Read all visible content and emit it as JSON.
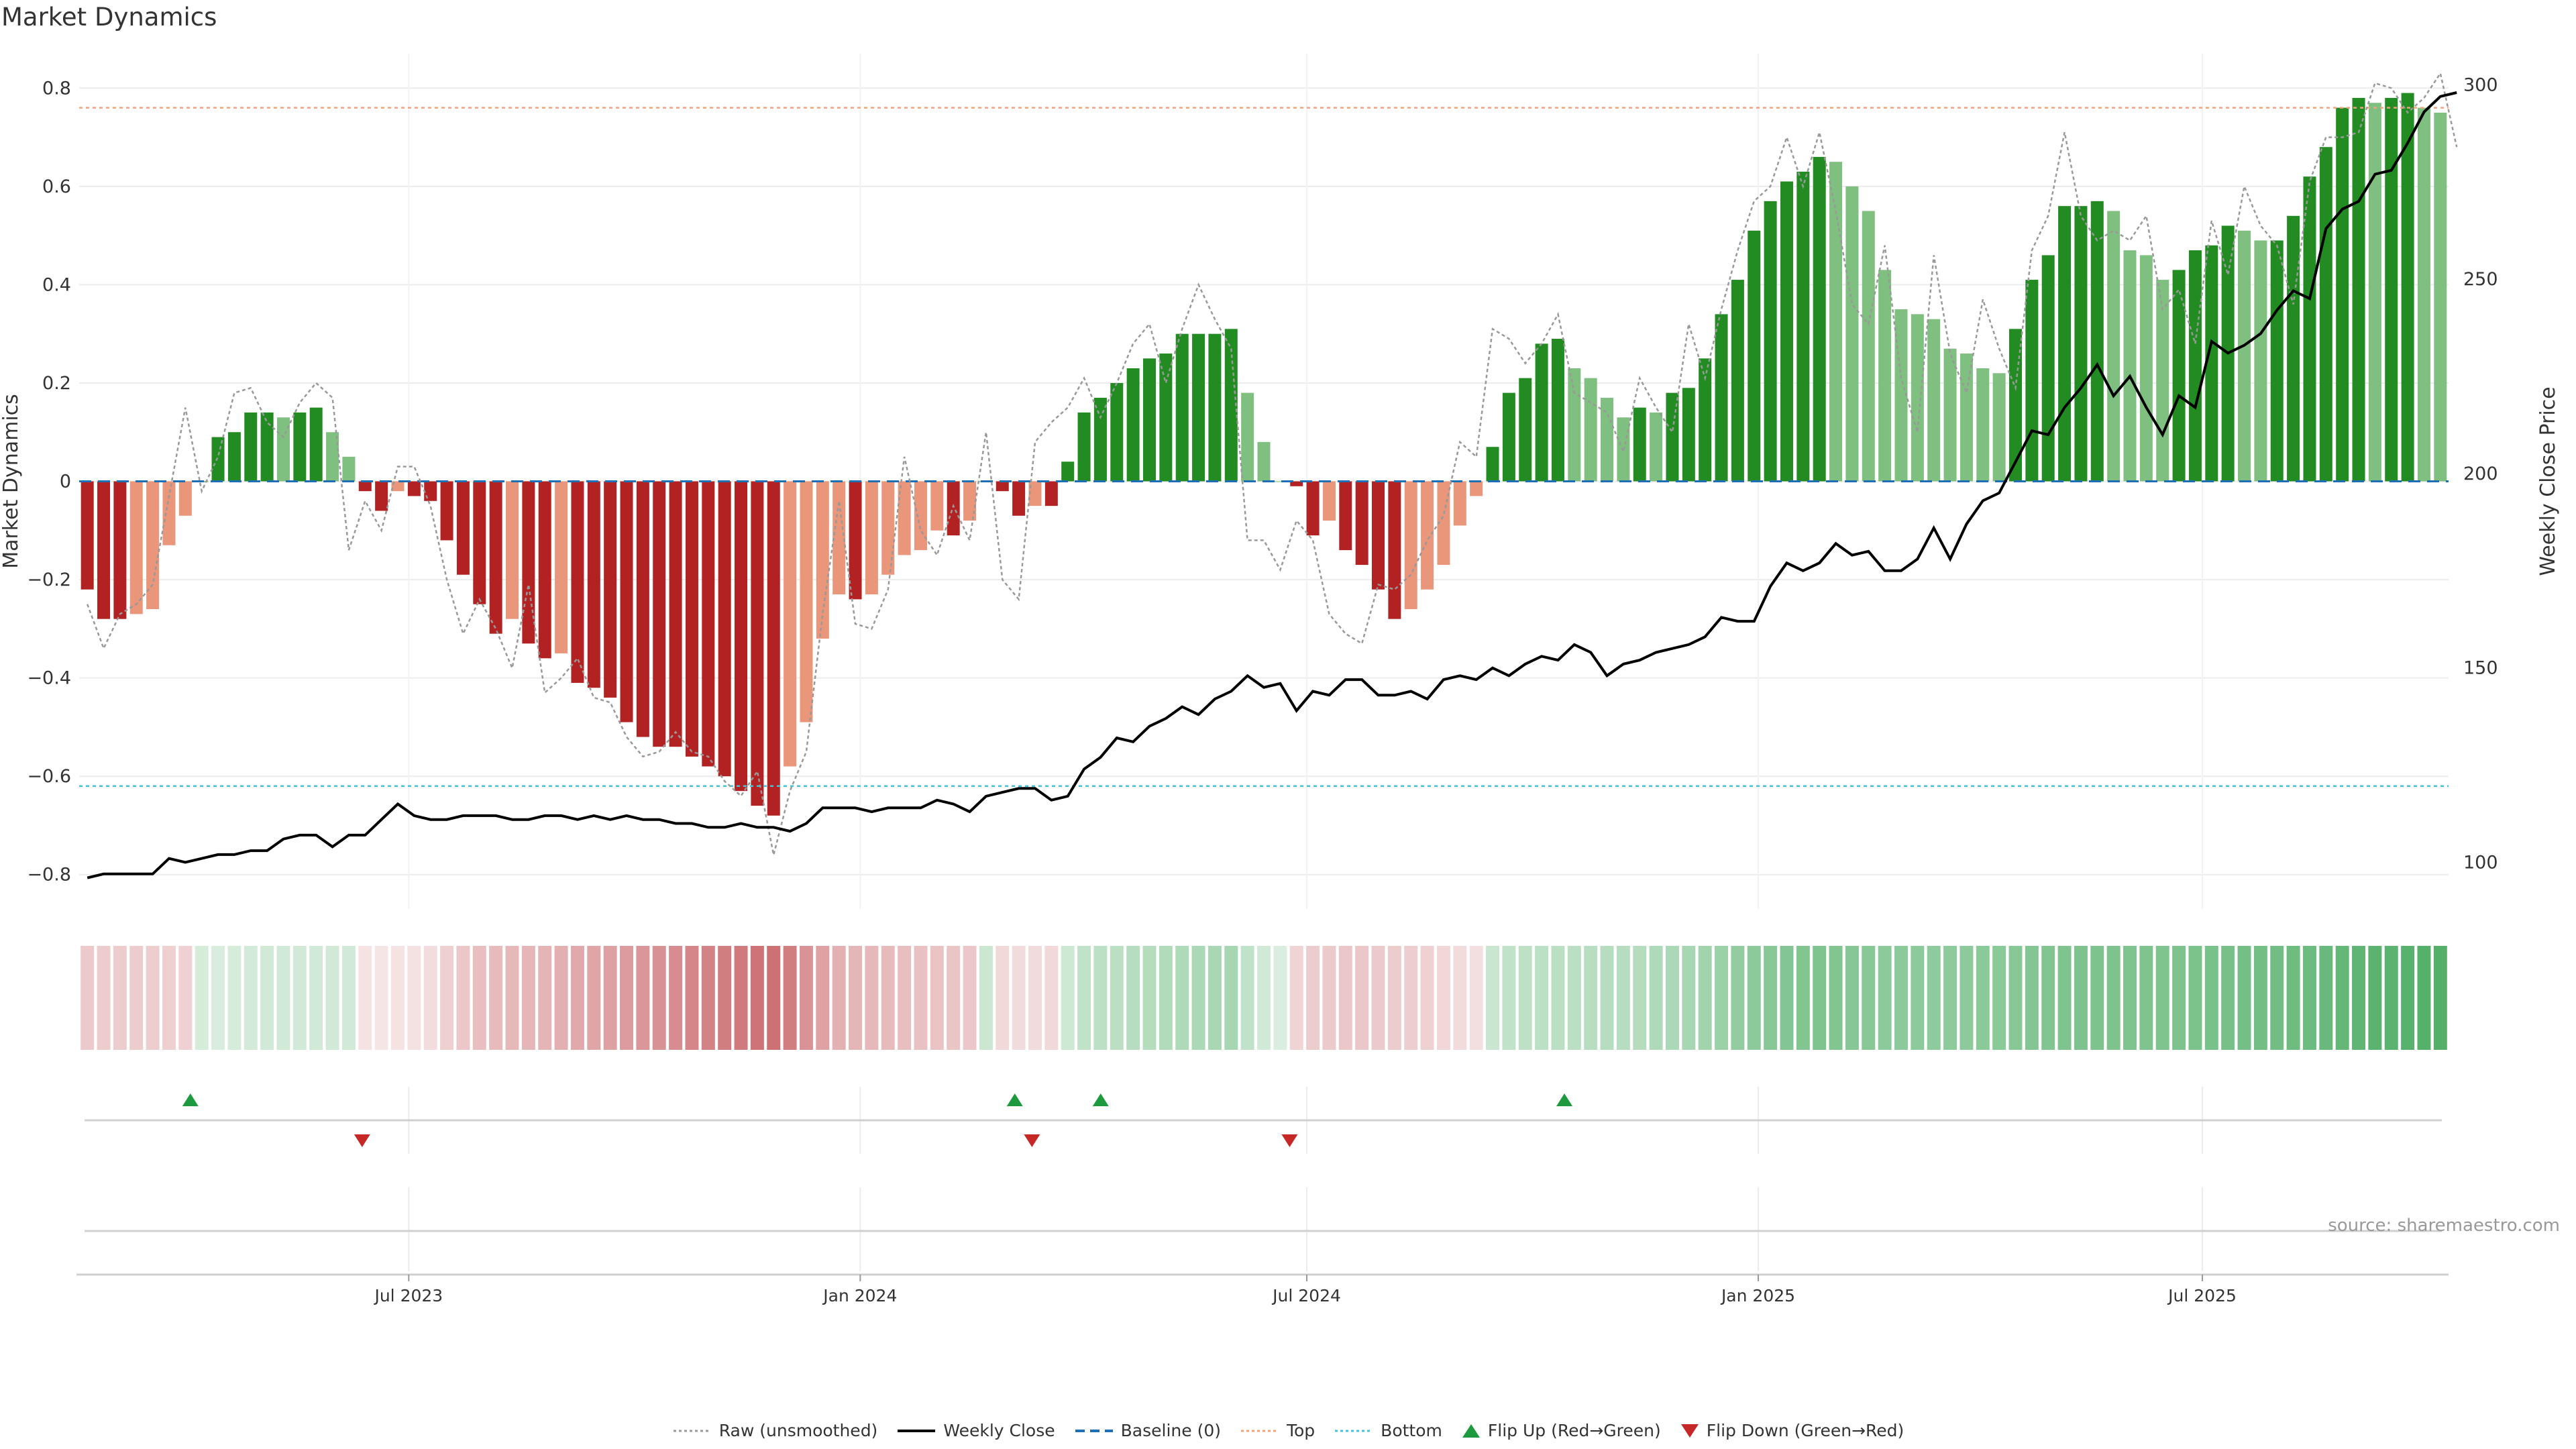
{
  "page": {
    "title": "Market Dynamics",
    "source": "source: sharemaestro.com"
  },
  "legend": [
    {
      "label": "Raw (unsmoothed)",
      "style": "dotted",
      "color": "#999999",
      "icon": "dotted-line"
    },
    {
      "label": "Weekly Close",
      "style": "solid",
      "color": "#000000",
      "icon": "solid-line"
    },
    {
      "label": "Baseline (0)",
      "style": "dashed",
      "color": "#1f6fb4",
      "icon": "dashed-line"
    },
    {
      "label": "Top",
      "style": "dotted",
      "color": "#f2a37a",
      "icon": "dotted-line"
    },
    {
      "label": "Bottom",
      "style": "dotted",
      "color": "#45c3d9",
      "icon": "dotted-line"
    },
    {
      "label": "Flip Up (Red→Green)",
      "style": "triangle-up",
      "color": "#1e9a3e",
      "icon": "triangle-up-icon"
    },
    {
      "label": "Flip Down (Green→Red)",
      "style": "triangle-down",
      "color": "#c62828",
      "icon": "triangle-down-icon"
    }
  ],
  "colors": {
    "strong_pos": "#228b22",
    "weak_pos": "#7fbf7f",
    "strong_neg": "#b22222",
    "weak_neg": "#e9967a",
    "raw": "#999999",
    "close": "#000000",
    "baseline": "#1f6fb4",
    "top": "#f2a37a",
    "bottom": "#45c3d9",
    "flip_up": "#1e9a3e",
    "flip_down": "#c62828"
  },
  "chart_data": {
    "type": "bar",
    "title": "Market Dynamics",
    "ylabel": "Market Dynamics",
    "y2label": "Weekly Close Price",
    "ylim": [
      -0.87,
      0.87
    ],
    "y2lim": [
      88,
      308
    ],
    "yticks": [
      -0.8,
      -0.6,
      -0.4,
      -0.2,
      0,
      0.2,
      0.4,
      0.6,
      0.8
    ],
    "yticklabels": [
      "−0.8",
      "−0.6",
      "−0.4",
      "−0.2",
      "0",
      "0.2",
      "0.4",
      "0.6",
      "0.8"
    ],
    "y2ticks": [
      100,
      150,
      200,
      250,
      300
    ],
    "x_start": "2023-02-20",
    "x_end": "2025-10-06",
    "xticks": [
      {
        "date": "2023-07-01",
        "label": "Jul 2023"
      },
      {
        "date": "2024-01-01",
        "label": "Jan 2024"
      },
      {
        "date": "2024-07-01",
        "label": "Jul 2024"
      },
      {
        "date": "2025-01-01",
        "label": "Jan 2025"
      },
      {
        "date": "2025-07-01",
        "label": "Jul 2025"
      }
    ],
    "top_line": 0.76,
    "bottom_line": -0.62,
    "baseline": 0,
    "series": [
      {
        "name": "Market Dynamics",
        "values": [
          -0.22,
          -0.28,
          -0.28,
          -0.27,
          -0.26,
          -0.13,
          -0.07,
          0,
          0.09,
          0.1,
          0.14,
          0.14,
          0.13,
          0.14,
          0.15,
          0.1,
          0.05,
          -0.02,
          -0.06,
          -0.02,
          -0.03,
          -0.04,
          -0.12,
          -0.19,
          -0.25,
          -0.31,
          -0.28,
          -0.33,
          -0.36,
          -0.35,
          -0.41,
          -0.42,
          -0.44,
          -0.49,
          -0.52,
          -0.54,
          -0.54,
          -0.56,
          -0.58,
          -0.6,
          -0.63,
          -0.66,
          -0.68,
          -0.58,
          -0.49,
          -0.32,
          -0.23,
          -0.24,
          -0.23,
          -0.19,
          -0.15,
          -0.14,
          -0.1,
          -0.11,
          -0.08,
          0,
          -0.02,
          -0.07,
          -0.05,
          -0.05,
          0.04,
          0.14,
          0.17,
          0.2,
          0.23,
          0.25,
          0.26,
          0.3,
          0.3,
          0.3,
          0.31,
          0.18,
          0.08,
          0,
          -0.01,
          -0.11,
          -0.08,
          -0.14,
          -0.17,
          -0.22,
          -0.28,
          -0.26,
          -0.22,
          -0.17,
          -0.09,
          -0.03,
          0.07,
          0.18,
          0.21,
          0.28,
          0.29,
          0.23,
          0.21,
          0.17,
          0.13,
          0.15,
          0.14,
          0.18,
          0.19,
          0.25,
          0.34,
          0.41,
          0.51,
          0.57,
          0.61,
          0.63,
          0.66,
          0.65,
          0.6,
          0.55,
          0.43,
          0.35,
          0.34,
          0.33,
          0.27,
          0.26,
          0.23,
          0.22,
          0.31,
          0.41,
          0.46,
          0.56,
          0.56,
          0.57,
          0.55,
          0.47,
          0.46,
          0.41,
          0.43,
          0.47,
          0.48,
          0.52,
          0.51,
          0.49,
          0.49,
          0.54,
          0.62,
          0.68,
          0.76,
          0.78,
          0.77,
          0.78,
          0.79,
          0.76,
          0.75
        ]
      },
      {
        "name": "Raw (unsmoothed)",
        "values": [
          -0.25,
          -0.34,
          -0.27,
          -0.25,
          -0.21,
          -0.03,
          0.15,
          -0.02,
          0.05,
          0.18,
          0.19,
          0.12,
          0.09,
          0.16,
          0.2,
          0.17,
          -0.14,
          -0.04,
          -0.1,
          0.03,
          0.03,
          -0.05,
          -0.2,
          -0.31,
          -0.24,
          -0.3,
          -0.38,
          -0.21,
          -0.43,
          -0.4,
          -0.36,
          -0.44,
          -0.45,
          -0.52,
          -0.56,
          -0.55,
          -0.51,
          -0.55,
          -0.56,
          -0.61,
          -0.64,
          -0.59,
          -0.76,
          -0.63,
          -0.55,
          -0.27,
          -0.04,
          -0.29,
          -0.3,
          -0.22,
          0.05,
          -0.1,
          -0.15,
          -0.05,
          -0.12,
          0.1,
          -0.2,
          -0.24,
          0.08,
          0.12,
          0.15,
          0.21,
          0.13,
          0.2,
          0.28,
          0.32,
          0.2,
          0.31,
          0.4,
          0.33,
          0.27,
          -0.12,
          -0.12,
          -0.18,
          -0.08,
          -0.12,
          -0.27,
          -0.31,
          -0.33,
          -0.21,
          -0.22,
          -0.19,
          -0.12,
          -0.07,
          0.08,
          0.05,
          0.31,
          0.29,
          0.24,
          0.28,
          0.34,
          0.18,
          0.16,
          0.14,
          0.06,
          0.21,
          0.15,
          0.1,
          0.32,
          0.21,
          0.35,
          0.47,
          0.57,
          0.6,
          0.7,
          0.6,
          0.71,
          0.55,
          0.36,
          0.32,
          0.48,
          0.21,
          0.1,
          0.46,
          0.26,
          0.18,
          0.37,
          0.27,
          0.19,
          0.47,
          0.54,
          0.71,
          0.54,
          0.49,
          0.51,
          0.49,
          0.54,
          0.35,
          0.39,
          0.28,
          0.53,
          0.42,
          0.6,
          0.52,
          0.48,
          0.36,
          0.61,
          0.7,
          0.7,
          0.71,
          0.81,
          0.8,
          0.75,
          0.78,
          0.83,
          0.68
        ]
      },
      {
        "name": "Weekly Close",
        "y_axis": "right",
        "values": [
          96,
          97,
          97,
          97,
          97,
          101,
          100,
          101,
          102,
          102,
          103,
          103,
          106,
          107,
          107,
          104,
          107,
          107,
          111,
          115,
          112,
          111,
          111,
          112,
          112,
          112,
          111,
          111,
          112,
          112,
          111,
          112,
          111,
          112,
          111,
          111,
          110,
          110,
          109,
          109,
          110,
          109,
          109,
          108,
          110,
          114,
          114,
          114,
          113,
          114,
          114,
          114,
          116,
          115,
          113,
          117,
          118,
          119,
          119,
          116,
          117,
          124,
          127,
          132,
          131,
          135,
          137,
          140,
          138,
          142,
          144,
          148,
          145,
          146,
          139,
          144,
          143,
          147,
          147,
          143,
          143,
          144,
          142,
          147,
          148,
          147,
          150,
          148,
          151,
          153,
          152,
          156,
          154,
          148,
          151,
          152,
          154,
          155,
          156,
          158,
          163,
          162,
          162,
          171,
          177,
          175,
          177,
          182,
          179,
          180,
          175,
          175,
          178,
          186,
          178,
          187,
          193,
          195,
          203,
          211,
          210,
          217,
          222,
          228,
          220,
          225,
          217,
          210,
          220,
          217,
          234,
          231,
          233,
          236,
          242,
          247,
          245,
          263,
          268,
          270,
          277,
          278,
          285,
          293,
          297,
          298
        ]
      }
    ],
    "band_opacity": [
      0.25,
      0.24,
      0.24,
      0.24,
      0.23,
      0.22,
      0.21,
      0.2,
      0.19,
      0.2,
      0.21,
      0.22,
      0.22,
      0.22,
      0.22,
      0.22,
      0.22,
      0.13,
      0.12,
      0.13,
      0.14,
      0.16,
      0.22,
      0.26,
      0.3,
      0.32,
      0.33,
      0.34,
      0.35,
      0.37,
      0.4,
      0.42,
      0.44,
      0.46,
      0.49,
      0.51,
      0.53,
      0.56,
      0.58,
      0.6,
      0.62,
      0.65,
      0.66,
      0.6,
      0.5,
      0.43,
      0.36,
      0.34,
      0.33,
      0.32,
      0.3,
      0.29,
      0.28,
      0.27,
      0.26,
      0.25,
      0.18,
      0.17,
      0.17,
      0.18,
      0.24,
      0.3,
      0.32,
      0.33,
      0.35,
      0.36,
      0.37,
      0.38,
      0.4,
      0.41,
      0.42,
      0.3,
      0.22,
      0.18,
      0.2,
      0.24,
      0.25,
      0.26,
      0.26,
      0.25,
      0.24,
      0.23,
      0.21,
      0.19,
      0.17,
      0.15,
      0.26,
      0.3,
      0.31,
      0.32,
      0.33,
      0.33,
      0.34,
      0.35,
      0.35,
      0.36,
      0.38,
      0.4,
      0.42,
      0.45,
      0.48,
      0.52,
      0.55,
      0.57,
      0.59,
      0.6,
      0.61,
      0.6,
      0.58,
      0.57,
      0.55,
      0.55,
      0.55,
      0.54,
      0.54,
      0.55,
      0.56,
      0.56,
      0.57,
      0.59,
      0.6,
      0.61,
      0.62,
      0.62,
      0.62,
      0.61,
      0.61,
      0.61,
      0.62,
      0.63,
      0.64,
      0.65,
      0.66,
      0.67,
      0.68,
      0.69,
      0.7,
      0.72,
      0.74,
      0.76,
      0.78,
      0.79,
      0.8,
      0.81,
      0.82,
      0.82
    ],
    "flip_up": [
      "2023-04-03",
      "2024-03-04",
      "2024-04-08",
      "2024-10-14"
    ],
    "flip_down": [
      "2023-06-12",
      "2024-03-11",
      "2024-06-24"
    ]
  }
}
